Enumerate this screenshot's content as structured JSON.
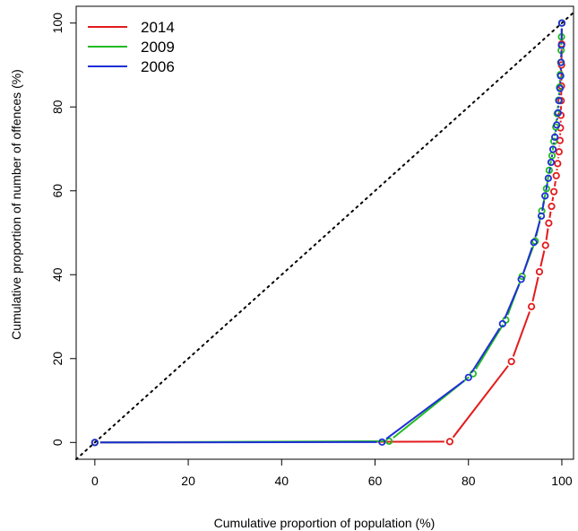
{
  "chart_data": {
    "type": "line",
    "xlabel": "Cumulative proportion of population (%)",
    "ylabel": "Cumulative proportion of number of offences (%)",
    "xlim": [
      -4,
      102.5
    ],
    "ylim": [
      -4,
      104
    ],
    "xticks": [
      0,
      20,
      40,
      60,
      80,
      100
    ],
    "yticks": [
      0,
      20,
      40,
      60,
      80,
      100
    ],
    "xtick_labels": [
      "0",
      "20",
      "40",
      "60",
      "80",
      "100"
    ],
    "ytick_labels": [
      "0",
      "20",
      "40",
      "60",
      "80",
      "100"
    ],
    "grid": false,
    "legend": "top-left",
    "equality_line": {
      "from": [
        -4,
        -4
      ],
      "to": [
        102.5,
        102.5
      ],
      "style": "dotted",
      "color": "#000000"
    },
    "series": [
      {
        "name": "2014",
        "color": "#e31a1c",
        "x": [
          0,
          76.0,
          89.2,
          93.5,
          95.2,
          96.5,
          97.2,
          97.8,
          98.3,
          98.8,
          99.1,
          99.4,
          99.6,
          99.7,
          99.8,
          99.85,
          99.9,
          99.93,
          99.96,
          100
        ],
        "y": [
          0,
          0.2,
          19.3,
          32.4,
          40.7,
          47.0,
          52.3,
          56.3,
          59.8,
          63.6,
          66.5,
          69.3,
          72.0,
          75.0,
          78.0,
          81.5,
          85.0,
          90.0,
          95.0,
          100
        ]
      },
      {
        "name": "2009",
        "color": "#22bb22",
        "x": [
          0,
          63.0,
          81.0,
          88.0,
          91.5,
          94.3,
          95.7,
          96.7,
          97.3,
          97.9,
          98.3,
          98.7,
          99.0,
          99.3,
          99.5,
          99.65,
          99.75,
          99.85,
          99.92,
          100
        ],
        "y": [
          0,
          0.3,
          16.4,
          29.2,
          39.6,
          48.0,
          55.2,
          60.5,
          64.9,
          68.4,
          71.8,
          75.2,
          78.4,
          81.6,
          84.7,
          87.7,
          90.6,
          93.5,
          96.7,
          100
        ]
      },
      {
        "name": "2006",
        "color": "#1f2fd6",
        "x": [
          0,
          61.5,
          80.0,
          87.3,
          91.3,
          94.0,
          95.6,
          96.4,
          97.1,
          97.7,
          98.1,
          98.5,
          98.9,
          99.2,
          99.4,
          99.6,
          99.75,
          99.85,
          99.92,
          100
        ],
        "y": [
          0,
          0.1,
          15.5,
          28.3,
          38.9,
          47.7,
          54.0,
          58.8,
          63.0,
          66.8,
          69.9,
          72.8,
          75.7,
          78.6,
          81.5,
          84.4,
          87.4,
          90.6,
          94.7,
          100
        ]
      }
    ]
  }
}
